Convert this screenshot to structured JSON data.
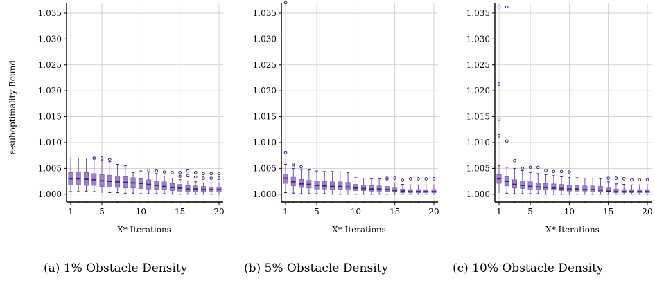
{
  "figure": {
    "y_axis_label": "ε-suboptimality Bound",
    "colors": {
      "box_fill": "#9a84c8",
      "box_edge": "#6d55a8",
      "median": "#3b1e78",
      "outlier": "#3a1d86",
      "grid": "#c9c9c9"
    }
  },
  "chart_data": [
    {
      "type": "box",
      "caption": "(a) 1% Obstacle Density",
      "xlabel": "X* Iterations",
      "ylabel": "ε-suboptimality Bound",
      "x_range": [
        1,
        20
      ],
      "x_ticks": [
        "1",
        "5",
        "10",
        "15",
        "20"
      ],
      "ylim": [
        0.9985,
        1.037
      ],
      "y_ticks": [
        "1.000",
        "1.005",
        "1.010",
        "1.015",
        "1.020",
        "1.025",
        "1.030",
        "1.035"
      ],
      "grid": true,
      "boxes": [
        {
          "x": 1,
          "whislo": 1.0005,
          "q1": 1.0018,
          "med": 1.003,
          "q3": 1.0042,
          "whishi": 1.007,
          "fliers": []
        },
        {
          "x": 2,
          "whislo": 1.0005,
          "q1": 1.0018,
          "med": 1.003,
          "q3": 1.0043,
          "whishi": 1.007,
          "fliers": []
        },
        {
          "x": 3,
          "whislo": 1.0006,
          "q1": 1.0017,
          "med": 1.0029,
          "q3": 1.0042,
          "whishi": 1.007,
          "fliers": []
        },
        {
          "x": 4,
          "whislo": 1.0005,
          "q1": 1.0017,
          "med": 1.0028,
          "q3": 1.004,
          "whishi": 1.0068,
          "fliers": [
            1.007
          ]
        },
        {
          "x": 5,
          "whislo": 1.0004,
          "q1": 1.0015,
          "med": 1.0026,
          "q3": 1.0038,
          "whishi": 1.0065,
          "fliers": [
            1.007
          ]
        },
        {
          "x": 6,
          "whislo": 1.0003,
          "q1": 1.0014,
          "med": 1.0025,
          "q3": 1.0037,
          "whishi": 1.0063,
          "fliers": [
            1.0067
          ]
        },
        {
          "x": 7,
          "whislo": 1.0003,
          "q1": 1.0013,
          "med": 1.0024,
          "q3": 1.0035,
          "whishi": 1.0058,
          "fliers": []
        },
        {
          "x": 8,
          "whislo": 1.0002,
          "q1": 1.0012,
          "med": 1.0023,
          "q3": 1.0034,
          "whishi": 1.0055,
          "fliers": []
        },
        {
          "x": 9,
          "whislo": 1.0002,
          "q1": 1.0012,
          "med": 1.0022,
          "q3": 1.0032,
          "whishi": 1.0042,
          "fliers": []
        },
        {
          "x": 10,
          "whislo": 1.0001,
          "q1": 1.0011,
          "med": 1.0021,
          "q3": 1.003,
          "whishi": 1.0045,
          "fliers": []
        },
        {
          "x": 11,
          "whislo": 1.0001,
          "q1": 1.001,
          "med": 1.0019,
          "q3": 1.0028,
          "whishi": 1.0043,
          "fliers": [
            1.0046
          ]
        },
        {
          "x": 12,
          "whislo": 1.0001,
          "q1": 1.0009,
          "med": 1.0017,
          "q3": 1.0026,
          "whishi": 1.004,
          "fliers": [
            1.0045
          ]
        },
        {
          "x": 13,
          "whislo": 1.0001,
          "q1": 1.0008,
          "med": 1.0015,
          "q3": 1.0024,
          "whishi": 1.0035,
          "fliers": [
            1.0043
          ]
        },
        {
          "x": 14,
          "whislo": 1.0,
          "q1": 1.0007,
          "med": 1.0013,
          "q3": 1.0021,
          "whishi": 1.0031,
          "fliers": [
            1.0042
          ]
        },
        {
          "x": 15,
          "whislo": 1.0,
          "q1": 1.0006,
          "med": 1.0012,
          "q3": 1.0019,
          "whishi": 1.0028,
          "fliers": [
            1.0035,
            1.0042
          ]
        },
        {
          "x": 16,
          "whislo": 1.0,
          "q1": 1.0005,
          "med": 1.001,
          "q3": 1.0017,
          "whishi": 1.0026,
          "fliers": [
            1.0036,
            1.0045
          ]
        },
        {
          "x": 17,
          "whislo": 1.0,
          "q1": 1.0005,
          "med": 1.001,
          "q3": 1.0016,
          "whishi": 1.0024,
          "fliers": [
            1.0033,
            1.0042
          ]
        },
        {
          "x": 18,
          "whislo": 1.0,
          "q1": 1.0005,
          "med": 1.0009,
          "q3": 1.0015,
          "whishi": 1.0022,
          "fliers": [
            1.0031,
            1.004
          ]
        },
        {
          "x": 19,
          "whislo": 1.0,
          "q1": 1.0004,
          "med": 1.0009,
          "q3": 1.0014,
          "whishi": 1.0022,
          "fliers": [
            1.0031,
            1.004
          ]
        },
        {
          "x": 20,
          "whislo": 1.0,
          "q1": 1.0004,
          "med": 1.0009,
          "q3": 1.0014,
          "whishi": 1.0022,
          "fliers": [
            1.0031,
            1.004
          ]
        }
      ]
    },
    {
      "type": "box",
      "caption": "(b) 5% Obstacle Density",
      "xlabel": "X* Iterations",
      "ylabel": "",
      "x_range": [
        1,
        20
      ],
      "x_ticks": [
        "1",
        "5",
        "10",
        "15",
        "20"
      ],
      "ylim": [
        0.9985,
        1.037
      ],
      "y_ticks": [
        "1.000",
        "1.005",
        "1.010",
        "1.015",
        "1.020",
        "1.025",
        "1.030",
        "1.035"
      ],
      "grid": true,
      "boxes": [
        {
          "x": 1,
          "whislo": 1.0003,
          "q1": 1.0021,
          "med": 1.0031,
          "q3": 1.0039,
          "whishi": 1.0058,
          "fliers": [
            1.008,
            1.037
          ]
        },
        {
          "x": 2,
          "whislo": 1.0002,
          "q1": 1.0016,
          "med": 1.0024,
          "q3": 1.0033,
          "whishi": 1.005,
          "fliers": [
            1.0055,
            1.0058
          ]
        },
        {
          "x": 3,
          "whislo": 1.0001,
          "q1": 1.0013,
          "med": 1.002,
          "q3": 1.0029,
          "whishi": 1.0048,
          "fliers": [
            1.0053
          ]
        },
        {
          "x": 4,
          "whislo": 1.0001,
          "q1": 1.0012,
          "med": 1.0019,
          "q3": 1.0027,
          "whishi": 1.0047,
          "fliers": []
        },
        {
          "x": 5,
          "whislo": 1.0001,
          "q1": 1.001,
          "med": 1.0017,
          "q3": 1.0026,
          "whishi": 1.0045,
          "fliers": []
        },
        {
          "x": 6,
          "whislo": 1.0001,
          "q1": 1.001,
          "med": 1.0016,
          "q3": 1.0025,
          "whishi": 1.0044,
          "fliers": []
        },
        {
          "x": 7,
          "whislo": 1.0,
          "q1": 1.0009,
          "med": 1.0015,
          "q3": 1.0024,
          "whishi": 1.0044,
          "fliers": []
        },
        {
          "x": 8,
          "whislo": 1.0,
          "q1": 1.0009,
          "med": 1.0015,
          "q3": 1.0024,
          "whishi": 1.0043,
          "fliers": []
        },
        {
          "x": 9,
          "whislo": 1.0,
          "q1": 1.0008,
          "med": 1.0014,
          "q3": 1.0023,
          "whishi": 1.0042,
          "fliers": []
        },
        {
          "x": 10,
          "whislo": 1.0,
          "q1": 1.0007,
          "med": 1.0012,
          "q3": 1.0019,
          "whishi": 1.0032,
          "fliers": []
        },
        {
          "x": 11,
          "whislo": 1.0,
          "q1": 1.0007,
          "med": 1.0011,
          "q3": 1.0018,
          "whishi": 1.0031,
          "fliers": []
        },
        {
          "x": 12,
          "whislo": 1.0,
          "q1": 1.0006,
          "med": 1.001,
          "q3": 1.0017,
          "whishi": 1.003,
          "fliers": []
        },
        {
          "x": 13,
          "whislo": 1.0,
          "q1": 1.0006,
          "med": 1.001,
          "q3": 1.0016,
          "whishi": 1.003,
          "fliers": []
        },
        {
          "x": 14,
          "whislo": 1.0,
          "q1": 1.0005,
          "med": 1.0009,
          "q3": 1.0015,
          "whishi": 1.0028,
          "fliers": [
            1.0031
          ]
        },
        {
          "x": 15,
          "whislo": 1.0,
          "q1": 1.0004,
          "med": 1.0007,
          "q3": 1.0012,
          "whishi": 1.0022,
          "fliers": [
            1.0031
          ]
        },
        {
          "x": 16,
          "whislo": 1.0,
          "q1": 1.0003,
          "med": 1.0006,
          "q3": 1.001,
          "whishi": 1.0019,
          "fliers": [
            1.0027
          ]
        },
        {
          "x": 17,
          "whislo": 1.0,
          "q1": 1.0003,
          "med": 1.0005,
          "q3": 1.0009,
          "whishi": 1.0018,
          "fliers": [
            1.003
          ]
        },
        {
          "x": 18,
          "whislo": 1.0,
          "q1": 1.0003,
          "med": 1.0005,
          "q3": 1.0009,
          "whishi": 1.0018,
          "fliers": [
            1.003
          ]
        },
        {
          "x": 19,
          "whislo": 1.0,
          "q1": 1.0003,
          "med": 1.0005,
          "q3": 1.0009,
          "whishi": 1.0018,
          "fliers": [
            1.003
          ]
        },
        {
          "x": 20,
          "whislo": 1.0,
          "q1": 1.0003,
          "med": 1.0005,
          "q3": 1.0009,
          "whishi": 1.0018,
          "fliers": [
            1.003
          ]
        }
      ]
    },
    {
      "type": "box",
      "caption": "(c) 10% Obstacle Density",
      "xlabel": "X* Iterations",
      "ylabel": "",
      "x_range": [
        1,
        20
      ],
      "x_ticks": [
        "1",
        "5",
        "10",
        "15",
        "20"
      ],
      "ylim": [
        0.9985,
        1.037
      ],
      "y_ticks": [
        "1.000",
        "1.005",
        "1.010",
        "1.015",
        "1.020",
        "1.025",
        "1.030",
        "1.035"
      ],
      "grid": true,
      "boxes": [
        {
          "x": 1,
          "whislo": 1.0004,
          "q1": 1.0021,
          "med": 1.003,
          "q3": 1.0038,
          "whishi": 1.0055,
          "fliers": [
            1.0113,
            1.0145,
            1.0213,
            1.0362
          ]
        },
        {
          "x": 2,
          "whislo": 1.0002,
          "q1": 1.0016,
          "med": 1.0025,
          "q3": 1.0034,
          "whishi": 1.0052,
          "fliers": [
            1.0103,
            1.0362
          ]
        },
        {
          "x": 3,
          "whislo": 1.0001,
          "q1": 1.0012,
          "med": 1.0019,
          "q3": 1.0028,
          "whishi": 1.005,
          "fliers": [
            1.0065
          ]
        },
        {
          "x": 4,
          "whislo": 1.0001,
          "q1": 1.0011,
          "med": 1.0017,
          "q3": 1.0026,
          "whishi": 1.0046,
          "fliers": [
            1.005
          ]
        },
        {
          "x": 5,
          "whislo": 1.0001,
          "q1": 1.001,
          "med": 1.0015,
          "q3": 1.0024,
          "whishi": 1.0042,
          "fliers": [
            1.0052
          ]
        },
        {
          "x": 6,
          "whislo": 1.0001,
          "q1": 1.0009,
          "med": 1.0014,
          "q3": 1.0022,
          "whishi": 1.004,
          "fliers": [
            1.0052
          ]
        },
        {
          "x": 7,
          "whislo": 1.0,
          "q1": 1.0008,
          "med": 1.0013,
          "q3": 1.0021,
          "whishi": 1.0038,
          "fliers": [
            1.0046
          ]
        },
        {
          "x": 8,
          "whislo": 1.0,
          "q1": 1.0008,
          "med": 1.0012,
          "q3": 1.002,
          "whishi": 1.0036,
          "fliers": [
            1.0044
          ]
        },
        {
          "x": 9,
          "whislo": 1.0,
          "q1": 1.0007,
          "med": 1.0011,
          "q3": 1.0019,
          "whishi": 1.0034,
          "fliers": [
            1.0044
          ]
        },
        {
          "x": 10,
          "whislo": 1.0,
          "q1": 1.0006,
          "med": 1.001,
          "q3": 1.0018,
          "whishi": 1.0032,
          "fliers": [
            1.0043
          ]
        },
        {
          "x": 11,
          "whislo": 1.0,
          "q1": 1.0006,
          "med": 1.001,
          "q3": 1.0017,
          "whishi": 1.0032,
          "fliers": []
        },
        {
          "x": 12,
          "whislo": 1.0,
          "q1": 1.0006,
          "med": 1.0009,
          "q3": 1.0016,
          "whishi": 1.0031,
          "fliers": []
        },
        {
          "x": 13,
          "whislo": 1.0,
          "q1": 1.0005,
          "med": 1.0009,
          "q3": 1.0016,
          "whishi": 1.0031,
          "fliers": []
        },
        {
          "x": 14,
          "whislo": 1.0,
          "q1": 1.0005,
          "med": 1.0008,
          "q3": 1.0015,
          "whishi": 1.003,
          "fliers": []
        },
        {
          "x": 15,
          "whislo": 1.0,
          "q1": 1.0004,
          "med": 1.0006,
          "q3": 1.0012,
          "whishi": 1.0024,
          "fliers": [
            1.0031
          ]
        },
        {
          "x": 16,
          "whislo": 1.0,
          "q1": 1.0003,
          "med": 1.0005,
          "q3": 1.001,
          "whishi": 1.002,
          "fliers": [
            1.0031
          ]
        },
        {
          "x": 17,
          "whislo": 1.0,
          "q1": 1.0003,
          "med": 1.0005,
          "q3": 1.0009,
          "whishi": 1.0019,
          "fliers": [
            1.003
          ]
        },
        {
          "x": 18,
          "whislo": 1.0,
          "q1": 1.0003,
          "med": 1.0005,
          "q3": 1.0009,
          "whishi": 1.0018,
          "fliers": [
            1.0028
          ]
        },
        {
          "x": 19,
          "whislo": 1.0,
          "q1": 1.0003,
          "med": 1.0005,
          "q3": 1.0009,
          "whishi": 1.0018,
          "fliers": [
            1.0028
          ]
        },
        {
          "x": 20,
          "whislo": 1.0,
          "q1": 1.0003,
          "med": 1.0005,
          "q3": 1.0009,
          "whishi": 1.0018,
          "fliers": [
            1.0028
          ]
        }
      ]
    }
  ]
}
